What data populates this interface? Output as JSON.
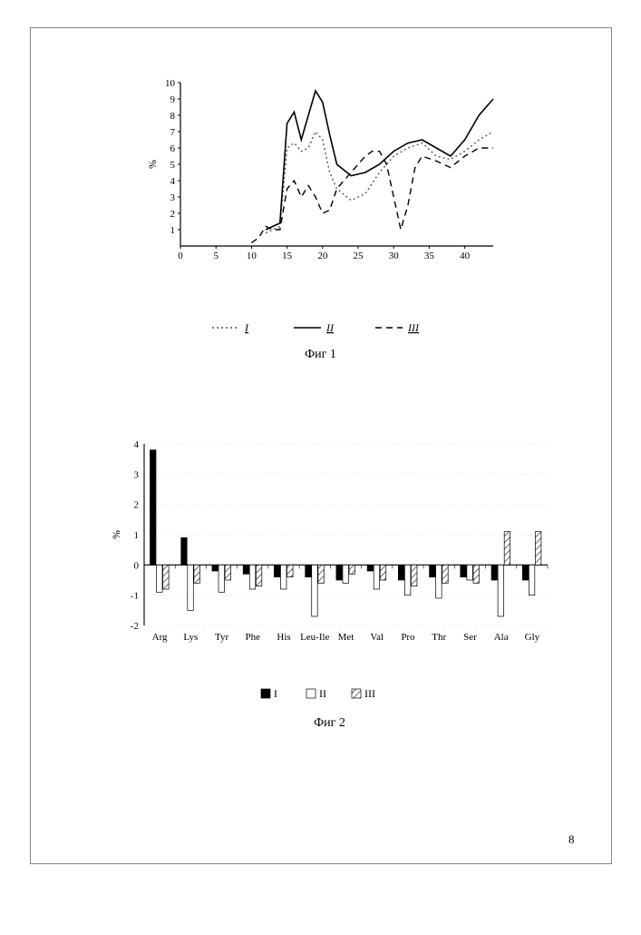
{
  "page_number": "8",
  "fig1": {
    "type": "line",
    "caption": "Фиг 1",
    "ylabel": "%",
    "xlim": [
      0,
      44
    ],
    "ylim": [
      0,
      10
    ],
    "xticks": [
      0,
      5,
      10,
      15,
      20,
      25,
      30,
      35,
      40
    ],
    "yticks": [
      1,
      2,
      3,
      4,
      5,
      6,
      7,
      8,
      9,
      10
    ],
    "background_color": "#ffffff",
    "axis_color": "#000000",
    "grid_color": "#e6e6e6",
    "series": [
      {
        "name": "I",
        "label": "I",
        "style": "dotted",
        "color": "#555555",
        "points": [
          [
            12,
            0.8
          ],
          [
            13,
            1.0
          ],
          [
            14,
            1.2
          ],
          [
            15,
            6.0
          ],
          [
            16,
            6.3
          ],
          [
            17,
            5.8
          ],
          [
            18,
            6.0
          ],
          [
            19,
            7.0
          ],
          [
            20,
            6.5
          ],
          [
            21,
            4.5
          ],
          [
            22,
            3.5
          ],
          [
            24,
            2.8
          ],
          [
            26,
            3.2
          ],
          [
            28,
            4.5
          ],
          [
            30,
            5.5
          ],
          [
            32,
            6.0
          ],
          [
            34,
            6.3
          ],
          [
            36,
            5.5
          ],
          [
            38,
            5.3
          ],
          [
            40,
            5.8
          ],
          [
            42,
            6.5
          ],
          [
            44,
            7.0
          ]
        ]
      },
      {
        "name": "II",
        "label": "II",
        "style": "solid",
        "color": "#000000",
        "points": [
          [
            12,
            1.0
          ],
          [
            13,
            1.2
          ],
          [
            14,
            1.4
          ],
          [
            15,
            7.5
          ],
          [
            16,
            8.2
          ],
          [
            17,
            6.5
          ],
          [
            18,
            8.0
          ],
          [
            19,
            9.5
          ],
          [
            20,
            8.8
          ],
          [
            21,
            6.8
          ],
          [
            22,
            5.0
          ],
          [
            24,
            4.3
          ],
          [
            26,
            4.5
          ],
          [
            28,
            5.0
          ],
          [
            30,
            5.8
          ],
          [
            32,
            6.3
          ],
          [
            34,
            6.5
          ],
          [
            36,
            6.0
          ],
          [
            38,
            5.5
          ],
          [
            40,
            6.5
          ],
          [
            42,
            8.0
          ],
          [
            44,
            9.0
          ]
        ]
      },
      {
        "name": "III",
        "label": "III",
        "style": "dashed",
        "color": "#000000",
        "points": [
          [
            10,
            0.2
          ],
          [
            11,
            0.5
          ],
          [
            12,
            1.2
          ],
          [
            13,
            1.0
          ],
          [
            14,
            1.0
          ],
          [
            15,
            3.5
          ],
          [
            16,
            4.0
          ],
          [
            17,
            3.0
          ],
          [
            18,
            3.7
          ],
          [
            19,
            3.0
          ],
          [
            20,
            2.0
          ],
          [
            21,
            2.2
          ],
          [
            22,
            3.5
          ],
          [
            24,
            4.5
          ],
          [
            26,
            5.5
          ],
          [
            27,
            5.8
          ],
          [
            28,
            5.8
          ],
          [
            29,
            5.0
          ],
          [
            30,
            3.0
          ],
          [
            31,
            1.0
          ],
          [
            32,
            2.5
          ],
          [
            33,
            4.8
          ],
          [
            34,
            5.5
          ],
          [
            36,
            5.2
          ],
          [
            38,
            4.8
          ],
          [
            40,
            5.5
          ],
          [
            42,
            6.0
          ],
          [
            44,
            6.0
          ]
        ]
      }
    ],
    "legend_items": [
      "I",
      "II",
      "III"
    ]
  },
  "fig2": {
    "type": "bar",
    "caption": "Фиг 2",
    "ylabel": "%",
    "ylim": [
      -2,
      4
    ],
    "yticks": [
      -2,
      -1,
      0,
      1,
      2,
      3,
      4
    ],
    "categories": [
      "Arg",
      "Lys",
      "Tyr",
      "Phe",
      "His",
      "Leu-Ile",
      "Met",
      "Val",
      "Pro",
      "Thr",
      "Ser",
      "Ala",
      "Gly"
    ],
    "background_color": "#ffffff",
    "axis_color": "#000000",
    "grid_color": "#d8d8d8",
    "bar_group_width": 0.62,
    "series": [
      {
        "name": "I",
        "fill": "solid",
        "color": "#000000",
        "values": [
          3.8,
          0.9,
          -0.2,
          -0.3,
          -0.4,
          -0.4,
          -0.5,
          -0.2,
          -0.5,
          -0.4,
          -0.4,
          -0.5,
          -0.5
        ]
      },
      {
        "name": "II",
        "fill": "open",
        "color": "#ffffff",
        "stroke": "#000000",
        "values": [
          -0.9,
          -1.5,
          -0.9,
          -0.8,
          -0.8,
          -1.7,
          -0.6,
          -0.8,
          -1.0,
          -1.1,
          -0.5,
          -1.7,
          -1.0
        ]
      },
      {
        "name": "III",
        "fill": "hatched",
        "color": "#666666",
        "values": [
          -0.8,
          -0.6,
          -0.5,
          -0.7,
          -0.4,
          -0.6,
          -0.3,
          -0.5,
          -0.7,
          -0.6,
          -0.6,
          1.1,
          1.1
        ]
      }
    ],
    "legend_items": [
      "I",
      "II",
      "III"
    ]
  }
}
